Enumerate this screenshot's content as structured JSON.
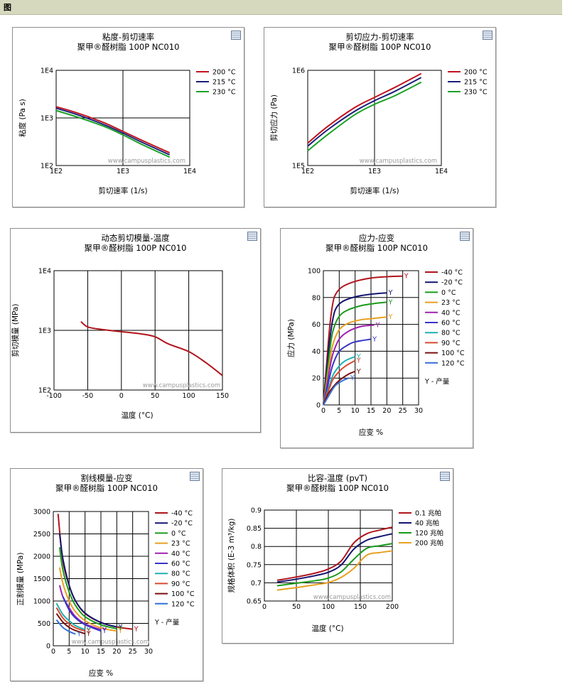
{
  "header": {
    "title": "图"
  },
  "watermark": "www.campusplastics.com",
  "chart_data": [
    {
      "id": "c1",
      "type": "line",
      "title": "粘度-剪切速率",
      "subtitle": "聚甲®醛树脂 100P NC010",
      "xlabel": "剪切速率 (1/s)",
      "ylabel": "粘度 (Pa s)",
      "xscale": "log",
      "yscale": "log",
      "xlim": [
        100,
        10000
      ],
      "ylim": [
        100,
        10000
      ],
      "xticks": [
        {
          "v": 100,
          "label": "1E2"
        },
        {
          "v": 1000,
          "label": "1E3"
        },
        {
          "v": 10000,
          "label": "1E4"
        }
      ],
      "yticks": [
        {
          "v": 100,
          "label": "1E2"
        },
        {
          "v": 1000,
          "label": "1E3"
        },
        {
          "v": 10000,
          "label": "1E4"
        }
      ],
      "legend_position": "right",
      "series": [
        {
          "name": "200 °C",
          "color": "#c0141e",
          "x": [
            100,
            200,
            500,
            1000,
            2000,
            5000
          ],
          "y": [
            1720,
            1290,
            810,
            520,
            330,
            185
          ]
        },
        {
          "name": "215 °C",
          "color": "#1a1f7a",
          "x": [
            100,
            200,
            500,
            1000,
            2000,
            5000
          ],
          "y": [
            1600,
            1190,
            740,
            480,
            300,
            168
          ]
        },
        {
          "name": "230 °C",
          "color": "#1aa126",
          "x": [
            100,
            200,
            500,
            1000,
            2000,
            5000
          ],
          "y": [
            1430,
            1060,
            680,
            440,
            270,
            150
          ]
        }
      ]
    },
    {
      "id": "c2",
      "type": "line",
      "title": "剪切应力-剪切速率",
      "subtitle": "聚甲®醛树脂 100P NC010",
      "xlabel": "剪切速率 (1/s)",
      "ylabel": "剪切应力 (Pa)",
      "xscale": "log",
      "yscale": "log",
      "xlim": [
        100,
        10000
      ],
      "ylim": [
        100000,
        1000000
      ],
      "xticks": [
        {
          "v": 100,
          "label": "1E2"
        },
        {
          "v": 1000,
          "label": "1E3"
        },
        {
          "v": 10000,
          "label": "1E4"
        }
      ],
      "yticks": [
        {
          "v": 100000,
          "label": "1E5"
        },
        {
          "v": 1000000,
          "label": "1E6"
        }
      ],
      "legend_position": "right",
      "series": [
        {
          "name": "200 °C",
          "color": "#c0141e",
          "x": [
            100,
            200,
            500,
            1000,
            2000,
            5000
          ],
          "y": [
            172000,
            258000,
            405000,
            520000,
            660000,
            925000
          ]
        },
        {
          "name": "215 °C",
          "color": "#1a1f7a",
          "x": [
            100,
            200,
            500,
            1000,
            2000,
            5000
          ],
          "y": [
            160000,
            238000,
            370000,
            480000,
            600000,
            840000
          ]
        },
        {
          "name": "230 °C",
          "color": "#1aa126",
          "x": [
            100,
            200,
            500,
            1000,
            2000,
            5000
          ],
          "y": [
            143000,
            212000,
            340000,
            440000,
            540000,
            750000
          ]
        }
      ]
    },
    {
      "id": "c3",
      "type": "line",
      "title": "动态剪切模量-温度",
      "subtitle": "聚甲®醛树脂 100P NC010",
      "xlabel": "温度 (°C)",
      "ylabel": "剪切模量 (MPa)",
      "xscale": "linear",
      "yscale": "log",
      "xlim": [
        -100,
        150
      ],
      "ylim": [
        100,
        10000
      ],
      "xticks": [
        {
          "v": -100,
          "label": "-100"
        },
        {
          "v": -50,
          "label": "-50"
        },
        {
          "v": 0,
          "label": "0"
        },
        {
          "v": 50,
          "label": "50"
        },
        {
          "v": 100,
          "label": "100"
        },
        {
          "v": 150,
          "label": "150"
        }
      ],
      "yticks": [
        {
          "v": 100,
          "label": "1E2"
        },
        {
          "v": 1000,
          "label": "1E3"
        },
        {
          "v": 10000,
          "label": "1E4"
        }
      ],
      "series": [
        {
          "name": "",
          "color": "#b0141c",
          "x": [
            -60,
            -50,
            -30,
            0,
            30,
            50,
            70,
            100,
            125,
            150
          ],
          "y": [
            1400,
            1140,
            1040,
            950,
            870,
            780,
            590,
            440,
            290,
            175
          ]
        }
      ]
    },
    {
      "id": "c4",
      "type": "line",
      "title": "应力-应变",
      "subtitle": "聚甲®醛树脂 100P NC010",
      "xlabel": "应变 %",
      "ylabel": "应力 (MPa)",
      "xscale": "linear",
      "yscale": "linear",
      "xlim": [
        0,
        30
      ],
      "ylim": [
        0,
        100
      ],
      "xticks": [
        {
          "v": 0,
          "label": "0"
        },
        {
          "v": 5,
          "label": "5"
        },
        {
          "v": 10,
          "label": "10"
        },
        {
          "v": 15,
          "label": "15"
        },
        {
          "v": 20,
          "label": "20"
        },
        {
          "v": 25,
          "label": "25"
        },
        {
          "v": 30,
          "label": "30"
        }
      ],
      "yticks": [
        {
          "v": 0,
          "label": "0"
        },
        {
          "v": 20,
          "label": "20"
        },
        {
          "v": 40,
          "label": "40"
        },
        {
          "v": 60,
          "label": "60"
        },
        {
          "v": 80,
          "label": "80"
        },
        {
          "v": 100,
          "label": "100"
        }
      ],
      "legend_position": "right",
      "legend_note": "Y - 产量",
      "yield_marker": "Y",
      "series": [
        {
          "name": "-40 °C",
          "color": "#b0141c",
          "x": [
            0,
            1,
            2,
            3,
            4,
            6,
            10,
            15,
            20,
            25
          ],
          "y": [
            0,
            30,
            58,
            76,
            83,
            88,
            92,
            94.5,
            95.5,
            96
          ]
        },
        {
          "name": "-20 °C",
          "color": "#141470",
          "x": [
            0,
            1,
            2,
            3,
            4,
            6,
            10,
            15,
            20
          ],
          "y": [
            0,
            25,
            48,
            64,
            72,
            77,
            80.5,
            82.5,
            83.5
          ]
        },
        {
          "name": "0 °C",
          "color": "#1a9a1a",
          "x": [
            0,
            1,
            2,
            3,
            5,
            8,
            12,
            16,
            20
          ],
          "y": [
            0,
            20,
            40,
            55,
            66,
            71,
            74,
            75.5,
            76.5
          ]
        },
        {
          "name": "23 °C",
          "color": "#e8a020",
          "x": [
            0,
            1,
            2,
            3,
            5,
            8,
            12,
            16,
            20
          ],
          "y": [
            0,
            16,
            32,
            45,
            56,
            61,
            63.5,
            64.5,
            65.5
          ]
        },
        {
          "name": "40 °C",
          "color": "#a020b0",
          "x": [
            0,
            1,
            2,
            3,
            5,
            8,
            12,
            16
          ],
          "y": [
            0,
            13,
            27,
            38,
            49,
            55,
            58.5,
            59.5
          ]
        },
        {
          "name": "60 °C",
          "color": "#3535c8",
          "x": [
            0,
            1,
            2,
            3,
            5,
            8,
            10,
            15
          ],
          "y": [
            0,
            10,
            21,
            30,
            40,
            45,
            47,
            49
          ]
        },
        {
          "name": "80 °C",
          "color": "#20b0b0",
          "x": [
            0,
            1,
            2,
            3,
            5,
            7,
            10
          ],
          "y": [
            0,
            8,
            15,
            22,
            29,
            33,
            36
          ]
        },
        {
          "name": "90 °C",
          "color": "#d84a30",
          "x": [
            0,
            1,
            2,
            3,
            5,
            7,
            10
          ],
          "y": [
            0,
            7,
            13,
            19,
            25,
            29,
            33
          ]
        },
        {
          "name": "100 °C",
          "color": "#7a1010",
          "x": [
            0,
            1,
            2,
            4,
            6,
            8,
            10
          ],
          "y": [
            0,
            6,
            10,
            16,
            20,
            23,
            25
          ]
        },
        {
          "name": "120 °C",
          "color": "#3070d8",
          "x": [
            0,
            1,
            2,
            3,
            4,
            6,
            8
          ],
          "y": [
            0,
            4,
            8,
            12,
            15,
            18,
            20
          ]
        }
      ]
    },
    {
      "id": "c5",
      "type": "line",
      "title": "割线模量-应变",
      "subtitle": "聚甲®醛树脂 100P NC010",
      "xlabel": "应变 %",
      "ylabel": "正割模量 (MPa)",
      "xscale": "linear",
      "yscale": "linear",
      "xlim": [
        0,
        30
      ],
      "ylim": [
        0,
        3000
      ],
      "xticks": [
        {
          "v": 0,
          "label": "0"
        },
        {
          "v": 5,
          "label": "5"
        },
        {
          "v": 10,
          "label": "10"
        },
        {
          "v": 15,
          "label": "15"
        },
        {
          "v": 20,
          "label": "20"
        },
        {
          "v": 25,
          "label": "25"
        },
        {
          "v": 30,
          "label": "30"
        }
      ],
      "yticks": [
        {
          "v": 0,
          "label": "0"
        },
        {
          "v": 500,
          "label": "500"
        },
        {
          "v": 1000,
          "label": "1000"
        },
        {
          "v": 1500,
          "label": "1500"
        },
        {
          "v": 2000,
          "label": "2000"
        },
        {
          "v": 2500,
          "label": "2500"
        },
        {
          "v": 3000,
          "label": "3000"
        }
      ],
      "legend_position": "right",
      "legend_note": "Y - 产量",
      "yield_marker": "Y",
      "series": [
        {
          "name": "-40 °C",
          "color": "#b0141c",
          "x": [
            1.5,
            3,
            5,
            7,
            10,
            15,
            20,
            25
          ],
          "y": [
            2950,
            1900,
            1350,
            1000,
            720,
            520,
            420,
            370
          ]
        },
        {
          "name": "-20 °C",
          "color": "#141470",
          "x": [
            2,
            3,
            5,
            7,
            10,
            15,
            20
          ],
          "y": [
            2500,
            1950,
            1350,
            1000,
            730,
            520,
            420
          ]
        },
        {
          "name": "0 °C",
          "color": "#1a9a1a",
          "x": [
            2,
            3,
            5,
            7,
            10,
            15,
            20
          ],
          "y": [
            2200,
            1700,
            1200,
            900,
            650,
            470,
            380
          ]
        },
        {
          "name": "23 °C",
          "color": "#e8a020",
          "x": [
            2,
            3,
            5,
            7,
            10,
            15,
            20
          ],
          "y": [
            1750,
            1400,
            1000,
            760,
            560,
            400,
            330
          ]
        },
        {
          "name": "40 °C",
          "color": "#a020b0",
          "x": [
            2,
            3,
            5,
            7,
            10,
            15
          ],
          "y": [
            1350,
            1100,
            850,
            650,
            490,
            360
          ]
        },
        {
          "name": "60 °C",
          "color": "#3535c8",
          "x": [
            3,
            5,
            7,
            10,
            15
          ],
          "y": [
            1100,
            800,
            620,
            470,
            330
          ]
        },
        {
          "name": "80 °C",
          "color": "#20b0b0",
          "x": [
            1,
            3,
            5,
            7,
            10
          ],
          "y": [
            950,
            700,
            560,
            450,
            360
          ]
        },
        {
          "name": "90 °C",
          "color": "#d84a30",
          "x": [
            1,
            3,
            5,
            7,
            10
          ],
          "y": [
            850,
            620,
            490,
            400,
            330
          ]
        },
        {
          "name": "100 °C",
          "color": "#7a1010",
          "x": [
            1,
            3,
            5,
            7,
            10
          ],
          "y": [
            720,
            530,
            410,
            340,
            270
          ]
        },
        {
          "name": "120 °C",
          "color": "#3070d8",
          "x": [
            1,
            3,
            5,
            7
          ],
          "y": [
            580,
            410,
            320,
            260
          ]
        }
      ]
    },
    {
      "id": "c6",
      "type": "line",
      "title": "比容-温度 (pvT)",
      "subtitle": "聚甲®醛树脂 100P NC010",
      "xlabel": "温度 (°C)",
      "ylabel": "规格体积 (E-3 m³/kg)",
      "xscale": "linear",
      "yscale": "linear",
      "xlim": [
        0,
        200
      ],
      "ylim": [
        0.65,
        0.9
      ],
      "xticks": [
        {
          "v": 0,
          "label": "0"
        },
        {
          "v": 50,
          "label": "50"
        },
        {
          "v": 100,
          "label": "100"
        },
        {
          "v": 150,
          "label": "150"
        },
        {
          "v": 200,
          "label": "200"
        }
      ],
      "yticks": [
        {
          "v": 0.65,
          "label": "0.65"
        },
        {
          "v": 0.7,
          "label": "0.7"
        },
        {
          "v": 0.75,
          "label": "0.75"
        },
        {
          "v": 0.8,
          "label": "0.8"
        },
        {
          "v": 0.85,
          "label": "0.85"
        },
        {
          "v": 0.9,
          "label": "0.9"
        }
      ],
      "legend_position": "right",
      "series": [
        {
          "name": "0.1 兆帕",
          "color": "#b0141c",
          "x": [
            20,
            50,
            80,
            100,
            120,
            140,
            160,
            180,
            200
          ],
          "y": [
            0.707,
            0.716,
            0.727,
            0.738,
            0.76,
            0.81,
            0.835,
            0.845,
            0.853
          ]
        },
        {
          "name": "40 兆帕",
          "color": "#141470",
          "x": [
            20,
            50,
            80,
            100,
            120,
            140,
            160,
            180,
            200
          ],
          "y": [
            0.702,
            0.71,
            0.72,
            0.729,
            0.749,
            0.793,
            0.817,
            0.827,
            0.835
          ]
        },
        {
          "name": "120 兆帕",
          "color": "#1a9a1a",
          "x": [
            20,
            50,
            80,
            100,
            120,
            140,
            160,
            180,
            200
          ],
          "y": [
            0.692,
            0.699,
            0.706,
            0.713,
            0.73,
            0.765,
            0.795,
            0.802,
            0.808
          ]
        },
        {
          "name": "200 兆帕",
          "color": "#e8a020",
          "x": [
            20,
            50,
            80,
            100,
            120,
            140,
            160,
            180,
            200
          ],
          "y": [
            0.68,
            0.687,
            0.695,
            0.701,
            0.715,
            0.74,
            0.776,
            0.783,
            0.788
          ]
        }
      ]
    }
  ]
}
